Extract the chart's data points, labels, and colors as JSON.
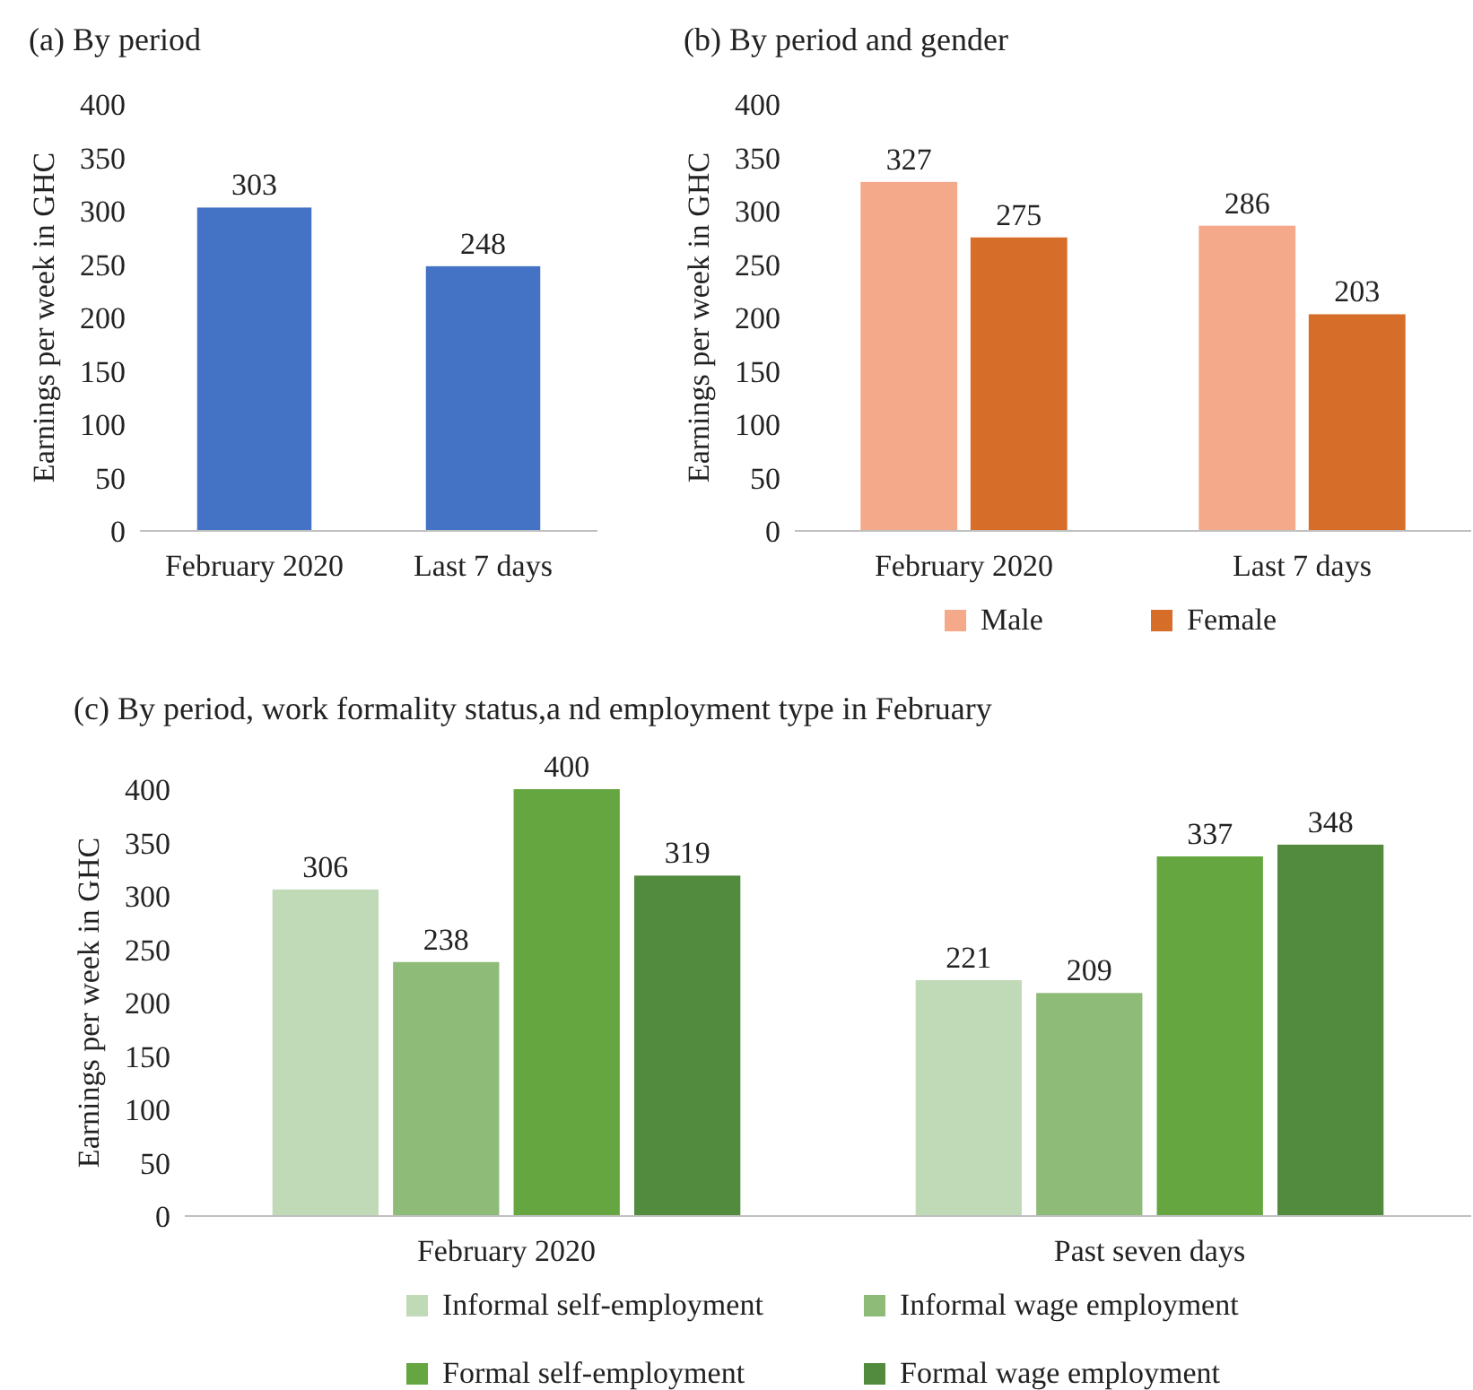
{
  "chart_data": [
    {
      "type": "bar",
      "title": "(a) By period",
      "ylabel": "Earnings per week in GHC",
      "categories": [
        "February 2020",
        "Last 7 days"
      ],
      "series": [
        {
          "color": "#4472c4",
          "values": [
            303,
            248
          ]
        }
      ],
      "ylim": [
        0,
        400
      ],
      "yticks": [
        0,
        50,
        100,
        150,
        200,
        250,
        300,
        350,
        400
      ],
      "grid": false,
      "data_labels": true,
      "legend": false
    },
    {
      "type": "bar",
      "title": "(b) By period and gender",
      "ylabel": "Earnings per week in GHC",
      "categories": [
        "February 2020",
        "Last 7 days"
      ],
      "series": [
        {
          "name": "Male",
          "color": "#f4a98a",
          "values": [
            327,
            286
          ]
        },
        {
          "name": "Female",
          "color": "#d66d29",
          "values": [
            275,
            203
          ]
        }
      ],
      "ylim": [
        0,
        400
      ],
      "yticks": [
        0,
        50,
        100,
        150,
        200,
        250,
        300,
        350,
        400
      ],
      "grid": false,
      "data_labels": true,
      "legend": "bottom"
    },
    {
      "type": "bar",
      "title": "(c) By period, work formality status,a nd employment type in February",
      "ylabel": "Earnings per week in GHC",
      "categories": [
        "February 2020",
        "Past seven days"
      ],
      "series": [
        {
          "name": "Informal self-employment",
          "color": "#c0d9b6",
          "values": [
            306,
            221
          ]
        },
        {
          "name": "Informal wage employment",
          "color": "#8fbb78",
          "values": [
            238,
            209
          ]
        },
        {
          "name": "Formal self-employment",
          "color": "#65a640",
          "values": [
            400,
            337
          ]
        },
        {
          "name": "Formal wage employment",
          "color": "#528a3e",
          "values": [
            319,
            348
          ]
        }
      ],
      "ylim": [
        0,
        400
      ],
      "yticks": [
        0,
        50,
        100,
        150,
        200,
        250,
        300,
        350,
        400
      ],
      "grid": false,
      "data_labels": true,
      "legend": "bottom"
    }
  ]
}
